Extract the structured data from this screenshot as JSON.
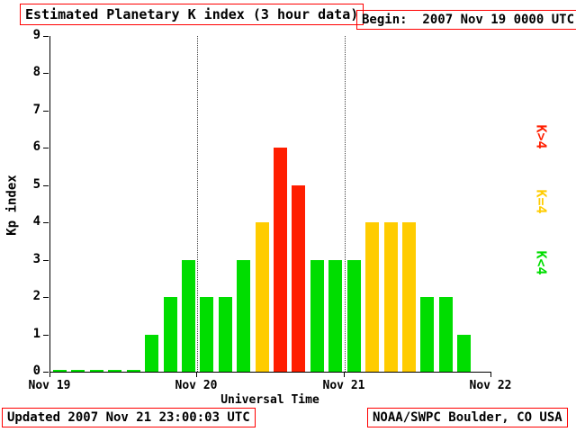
{
  "header": {
    "title": "Estimated Planetary K index (3 hour data)",
    "begin": "Begin:  2007 Nov 19 0000 UTC"
  },
  "footer": {
    "updated": "Updated 2007 Nov 21 23:00:03 UTC",
    "source": "NOAA/SWPC Boulder, CO USA"
  },
  "chart_data": {
    "type": "bar",
    "title": "Estimated Planetary K index (3 hour data)",
    "xlabel": "Universal Time",
    "ylabel": "Kp index",
    "ylim": [
      0,
      9
    ],
    "y_ticks": [
      0,
      1,
      2,
      3,
      4,
      5,
      6,
      7,
      8,
      9
    ],
    "x_ticks": [
      "Nov 19",
      "Nov 20",
      "Nov 21",
      "Nov 22"
    ],
    "interval_hours": 3,
    "intervals_per_day": 8,
    "values": [
      0,
      0,
      0,
      0,
      0,
      1,
      2,
      3,
      2,
      2,
      3,
      4,
      6,
      5,
      3,
      3,
      3,
      4,
      4,
      4,
      2,
      2,
      1
    ],
    "color_rule": {
      "below_4": "#00dd00",
      "equal_4": "#ffcc00",
      "above_4": "#ff1e00"
    },
    "legend": [
      {
        "label": "K>4",
        "color": "#ff1e00"
      },
      {
        "label": "K=4",
        "color": "#ffcc00"
      },
      {
        "label": "K<4",
        "color": "#00dd00"
      }
    ],
    "grid": "dotted vertical lines at day boundaries",
    "legend_position": "right"
  }
}
